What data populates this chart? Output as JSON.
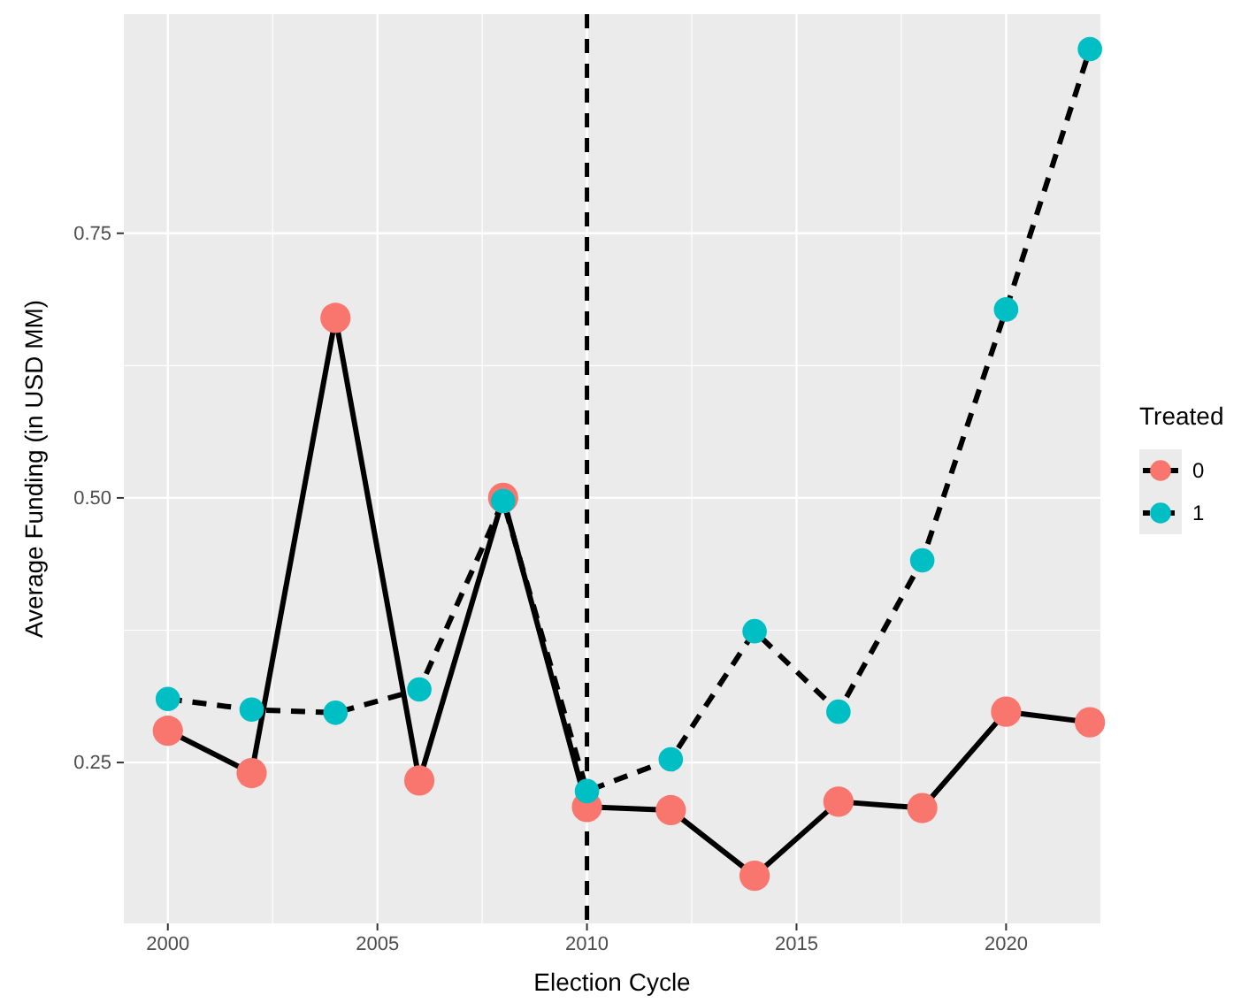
{
  "chart_data": {
    "type": "line",
    "xlabel": "Election Cycle",
    "ylabel": "Average Funding (in USD MM)",
    "legend_title": "Treated",
    "legend": "right",
    "grid": true,
    "marker": "circle",
    "x": [
      2000,
      2002,
      2004,
      2006,
      2008,
      2010,
      2012,
      2014,
      2016,
      2018,
      2020,
      2022
    ],
    "xlim": [
      1998.95,
      2022.25
    ],
    "xticks": [
      2000,
      2005,
      2010,
      2015,
      2020
    ],
    "ylim": [
      0.098,
      0.957
    ],
    "yticks": [
      0.25,
      {
        "value": 0.5,
        "label": "0.50"
      },
      0.75
    ],
    "ref_lines": [
      {
        "axis": "x",
        "value": 2010,
        "line_style": "dashed",
        "color": "#000000"
      }
    ],
    "series": [
      {
        "name": "0",
        "color": "#f8766d",
        "line_style": "solid",
        "values": [
          0.28,
          0.24,
          0.67,
          0.233,
          0.5,
          0.208,
          0.205,
          0.143,
          0.213,
          0.207,
          0.298,
          0.288
        ]
      },
      {
        "name": "1",
        "color": "#00bfc4",
        "line_style": "dashed",
        "values": [
          0.31,
          0.3,
          0.297,
          0.319,
          0.497,
          0.223,
          0.253,
          0.374,
          0.298,
          0.441,
          0.678,
          0.924
        ]
      }
    ]
  }
}
